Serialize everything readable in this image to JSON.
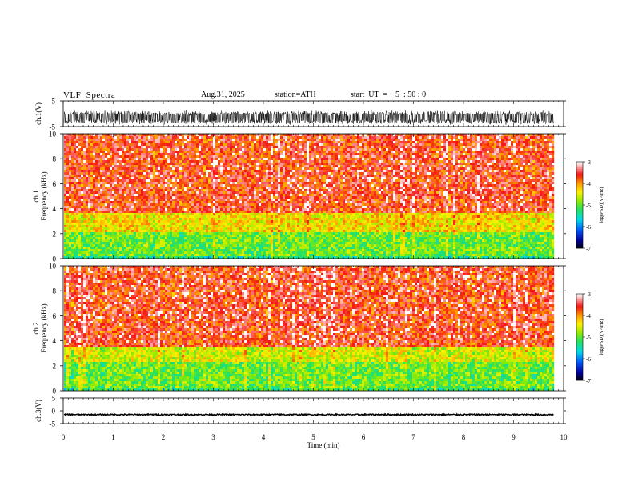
{
  "header": {
    "title": "VLF  Spectra",
    "date": "Aug.31, 2025",
    "station": "station=ATH",
    "start": "start  UT  =    5  : 50 : 0"
  },
  "chart_data": [
    {
      "type": "line",
      "panel": "ch1-waveform",
      "ylabel": "ch.1(V)",
      "ylim": [
        -5,
        5
      ],
      "yticks": [
        5,
        -5
      ],
      "xlim": [
        0,
        10
      ],
      "color": "#000000",
      "note_values": "dense noisy waveform centered near -1.5 V spanning roughly -3.5 to 0.5 V from 0 to 9.8 min"
    },
    {
      "type": "heatmap",
      "panel": "ch1-spectrogram",
      "ylabel": "ch.1\nFrequency  (kHz)",
      "ylim": [
        0,
        10
      ],
      "yticks": [
        0,
        2,
        4,
        6,
        8,
        10
      ],
      "xlim": [
        0,
        9.8
      ],
      "colorbar": {
        "label": "log(PSD)(V²/Hz)",
        "range": [
          -7,
          -3
        ],
        "ticks": [
          -3,
          -4,
          -5,
          -6,
          -7
        ]
      },
      "bands": [
        {
          "freq_khz": [
            0,
            0.3
          ],
          "level": -5.3
        },
        {
          "freq_khz": [
            0.3,
            2.2
          ],
          "level": -4.9
        },
        {
          "freq_khz": [
            2.2,
            3.8
          ],
          "level": -4.3
        },
        {
          "freq_khz": [
            3.8,
            10
          ],
          "level": -3.6
        }
      ]
    },
    {
      "type": "heatmap",
      "panel": "ch2-spectrogram",
      "ylabel": "ch.2\nFrequency  (kHz)",
      "ylim": [
        0,
        10
      ],
      "yticks": [
        0,
        2,
        4,
        6,
        8,
        10
      ],
      "xlim": [
        0,
        9.8
      ],
      "colorbar": {
        "label": "log(PSD)(V²/Hz)",
        "range": [
          -7,
          -3
        ],
        "ticks": [
          -3,
          -4,
          -5,
          -6,
          -7
        ]
      },
      "bands": [
        {
          "freq_khz": [
            0,
            0.3
          ],
          "level": -5.2
        },
        {
          "freq_khz": [
            0.3,
            2.4
          ],
          "level": -4.9
        },
        {
          "freq_khz": [
            2.4,
            3.6
          ],
          "level": -4.5
        },
        {
          "freq_khz": [
            3.6,
            10
          ],
          "level": -3.6
        }
      ]
    },
    {
      "type": "line",
      "panel": "ch3-waveform",
      "ylabel": "ch.3(V)",
      "ylim": [
        -5,
        5
      ],
      "yticks": [
        5,
        0,
        -5
      ],
      "xlim": [
        0,
        10
      ],
      "xticks": [
        0,
        1,
        2,
        3,
        4,
        5,
        6,
        7,
        8,
        9,
        10
      ],
      "xlabel": "Time  (min)",
      "color": "#000000",
      "note_values": "flat thick trace near -1.5 V from 0 to 9.8 min"
    }
  ]
}
